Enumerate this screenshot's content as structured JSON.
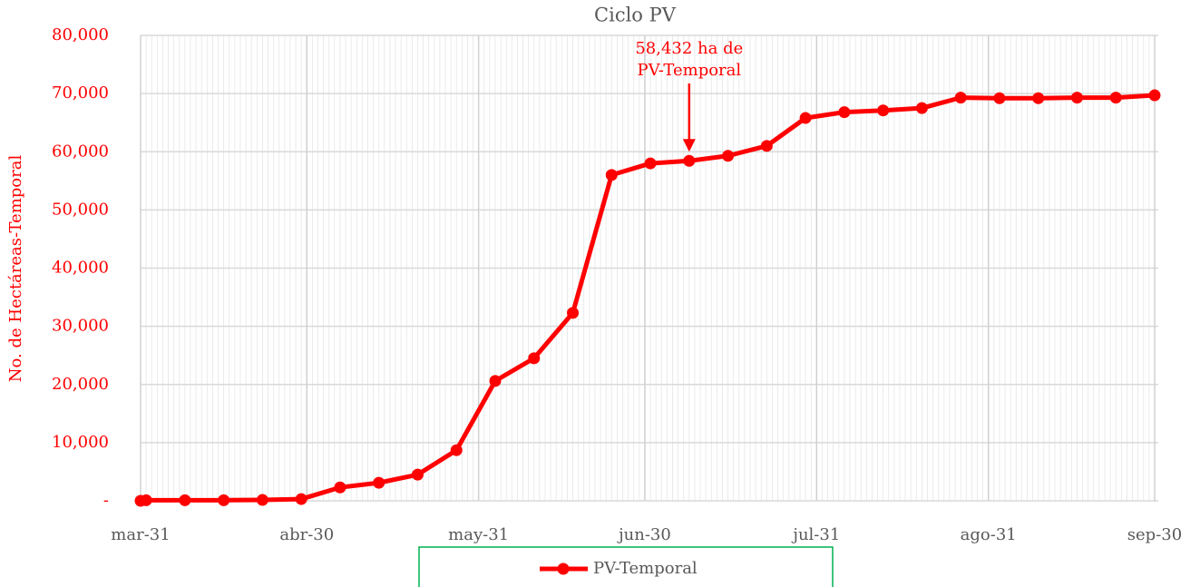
{
  "chart_data": {
    "type": "line",
    "title": "Ciclo PV",
    "y_label": "No. de Hectáreas-Temporal",
    "xlim": [
      0,
      183
    ],
    "xticks": [
      {
        "value": 0,
        "label": "mar-31"
      },
      {
        "value": 30,
        "label": "abr-30"
      },
      {
        "value": 61,
        "label": "may-31"
      },
      {
        "value": 91,
        "label": "jun-30"
      },
      {
        "value": 122,
        "label": "jul-31"
      },
      {
        "value": 153,
        "label": "ago-31"
      },
      {
        "value": 183,
        "label": "sep-30"
      }
    ],
    "ylim": [
      0,
      80000
    ],
    "yticks": [
      {
        "value": 0,
        "label": "-"
      },
      {
        "value": 10000,
        "label": "10,000"
      },
      {
        "value": 20000,
        "label": "20,000"
      },
      {
        "value": 30000,
        "label": "30,000"
      },
      {
        "value": 40000,
        "label": "40,000"
      },
      {
        "value": 50000,
        "label": "50,000"
      },
      {
        "value": 60000,
        "label": "60,000"
      },
      {
        "value": 70000,
        "label": "70,000"
      },
      {
        "value": 80000,
        "label": "80,000"
      }
    ],
    "grid": true,
    "minor_grid": true,
    "legend": "bottom",
    "x": [
      0,
      1,
      8,
      15,
      22,
      29,
      36,
      43,
      50,
      57,
      64,
      71,
      78,
      85,
      92,
      99,
      106,
      113,
      120,
      127,
      134,
      141,
      148,
      155,
      162,
      169,
      176,
      183
    ],
    "series": [
      {
        "name": "PV-Temporal",
        "color": "#ff0000",
        "values": [
          0,
          100,
          100,
          100,
          150,
          300,
          2300,
          3100,
          4500,
          8700,
          20600,
          24500,
          32300,
          56000,
          58000,
          58432,
          59300,
          61000,
          65800,
          66800,
          67100,
          67500,
          69300,
          69200,
          69200,
          69300,
          69300,
          69700
        ]
      }
    ],
    "annotation": {
      "lines": [
        "58,432 ha de",
        "PV-Temporal"
      ],
      "point": 15
    }
  }
}
